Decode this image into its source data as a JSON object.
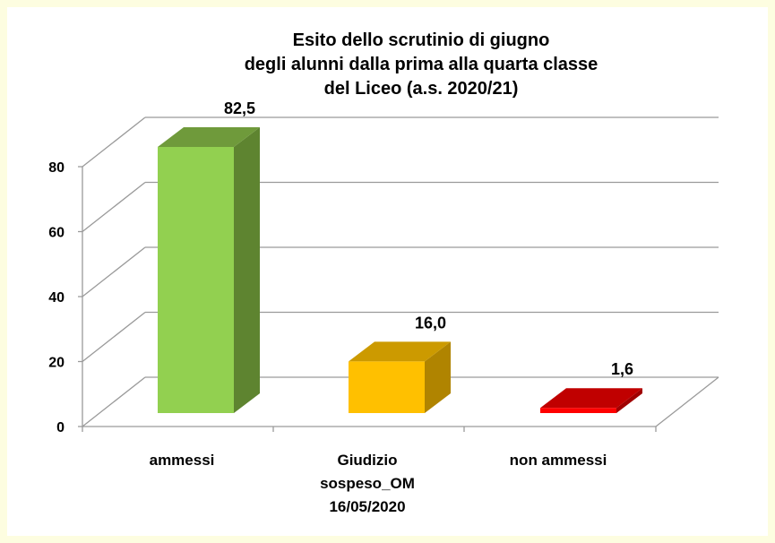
{
  "chart_data": {
    "type": "bar",
    "title_lines": [
      "Esito dello scrutinio di giugno",
      "degli alunni dalla prima alla quarta classe",
      "del Liceo   (a.s. 2020/21)"
    ],
    "categories": [
      [
        "ammessi"
      ],
      [
        "Giudizio",
        "sospeso_OM",
        "16/05/2020"
      ],
      [
        "non ammessi"
      ]
    ],
    "values": [
      82.5,
      16.0,
      1.6
    ],
    "data_labels": [
      "82,5",
      "16,0",
      "1,6"
    ],
    "yticks": [
      0,
      20,
      40,
      60,
      80
    ],
    "ylim": [
      0,
      80
    ],
    "grid": true,
    "three_d": true,
    "legend": "none",
    "colors": [
      {
        "front": "#92d050",
        "top": "#6f9a3b",
        "side": "#5e8430"
      },
      {
        "front": "#ffc000",
        "top": "#cc9a00",
        "side": "#b08400"
      },
      {
        "front": "#ff0000",
        "top": "#c00000",
        "side": "#a00000"
      }
    ],
    "grid_color": "#9a9a9a"
  }
}
